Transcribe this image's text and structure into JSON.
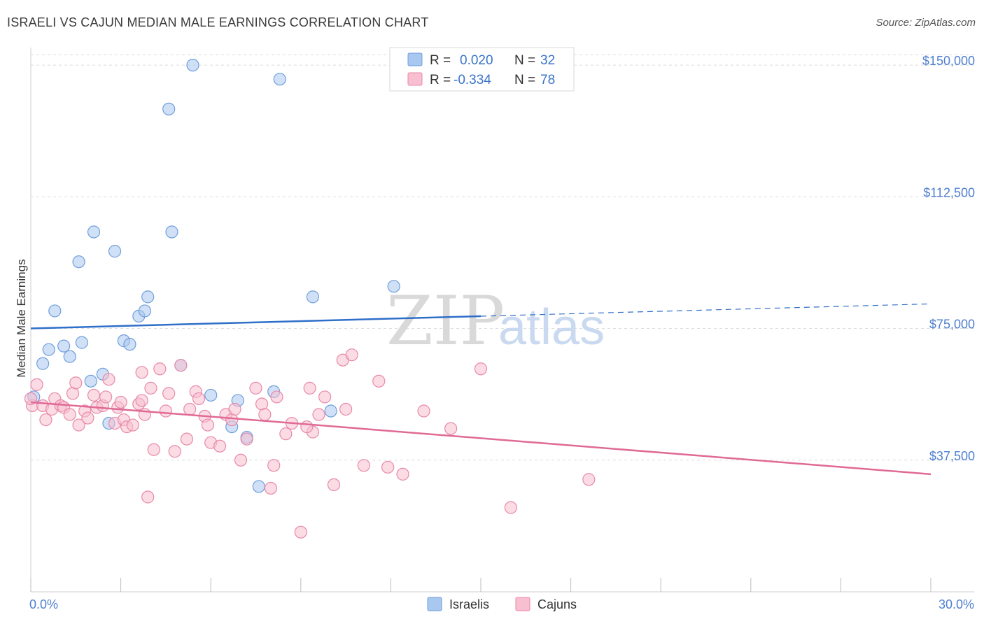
{
  "title": "ISRAELI VS CAJUN MEDIAN MALE EARNINGS CORRELATION CHART",
  "source": "Source: ZipAtlas.com",
  "watermark": {
    "zip": "ZIP",
    "atlas": "atlas"
  },
  "chart_data": {
    "type": "scatter",
    "title": "ISRAELI VS CAJUN MEDIAN MALE EARNINGS CORRELATION CHART",
    "ylabel": "Median Male Earnings",
    "xlim": [
      0,
      30
    ],
    "ylim": [
      0,
      155000
    ],
    "x_tick_labels": [
      "0.0%",
      "30.0%"
    ],
    "y_ticks": [
      37500,
      75000,
      112500,
      150000
    ],
    "y_tick_labels": [
      "$37,500",
      "$75,000",
      "$112,500",
      "$150,000"
    ],
    "grid": "horizontal dashed",
    "legend": {
      "placement": "top-center",
      "entries": [
        {
          "r_label": "R =",
          "r_value": "0.020",
          "n_label": "N =",
          "n_value": "32",
          "color": "#a9c8f0",
          "stroke": "#6f9edb"
        },
        {
          "r_label": "R =",
          "r_value": "-0.334",
          "n_label": "N =",
          "n_value": "78",
          "color": "#f8bfd0",
          "stroke": "#e889a8"
        }
      ]
    },
    "series": [
      {
        "name": "Israelis",
        "color": "#a9c8f0",
        "stroke": "#6f9edb",
        "line_color": "#2f6fc9",
        "trend": {
          "x": [
            0,
            15
          ],
          "y": [
            75000,
            78500
          ],
          "dashed_extension": {
            "x": [
              15,
              30
            ],
            "y": [
              78500,
              82000
            ]
          }
        },
        "points": [
          [
            0.1,
            55500
          ],
          [
            0.4,
            65000
          ],
          [
            0.6,
            69000
          ],
          [
            0.8,
            80000
          ],
          [
            1.1,
            70000
          ],
          [
            1.3,
            67000
          ],
          [
            1.6,
            94000
          ],
          [
            1.7,
            71000
          ],
          [
            2.0,
            60000
          ],
          [
            2.1,
            102500
          ],
          [
            2.4,
            62000
          ],
          [
            2.6,
            48000
          ],
          [
            2.8,
            97000
          ],
          [
            3.1,
            71500
          ],
          [
            3.3,
            70500
          ],
          [
            3.6,
            78500
          ],
          [
            3.8,
            80000
          ],
          [
            3.9,
            84000
          ],
          [
            4.6,
            137500
          ],
          [
            4.7,
            102500
          ],
          [
            5.0,
            64500
          ],
          [
            5.4,
            150000
          ],
          [
            6.0,
            56000
          ],
          [
            6.7,
            47000
          ],
          [
            6.9,
            54500
          ],
          [
            7.2,
            44000
          ],
          [
            7.6,
            30000
          ],
          [
            8.1,
            57000
          ],
          [
            8.3,
            146000
          ],
          [
            9.4,
            84000
          ],
          [
            10.0,
            51500
          ],
          [
            12.1,
            87000
          ]
        ]
      },
      {
        "name": "Cajuns",
        "color": "#f8bfd0",
        "stroke": "#e889a8",
        "line_color": "#e06a95",
        "trend": {
          "x": [
            0,
            30
          ],
          "y": [
            54000,
            33500
          ]
        },
        "points": [
          [
            0.05,
            53000
          ],
          [
            0.2,
            59000
          ],
          [
            0.4,
            53000
          ],
          [
            0.5,
            49000
          ],
          [
            0.7,
            52000
          ],
          [
            0.8,
            55000
          ],
          [
            1.0,
            53000
          ],
          [
            1.1,
            52500
          ],
          [
            1.3,
            50500
          ],
          [
            1.4,
            56500
          ],
          [
            1.5,
            59500
          ],
          [
            1.6,
            47500
          ],
          [
            1.8,
            51500
          ],
          [
            1.9,
            49500
          ],
          [
            2.1,
            56000
          ],
          [
            2.2,
            52500
          ],
          [
            2.4,
            53000
          ],
          [
            2.5,
            55500
          ],
          [
            2.6,
            60500
          ],
          [
            2.8,
            48000
          ],
          [
            2.9,
            52500
          ],
          [
            3.0,
            54000
          ],
          [
            3.1,
            49000
          ],
          [
            3.2,
            47000
          ],
          [
            3.4,
            47500
          ],
          [
            3.6,
            53500
          ],
          [
            3.7,
            54500
          ],
          [
            3.7,
            62500
          ],
          [
            3.8,
            50500
          ],
          [
            3.9,
            27000
          ],
          [
            4.0,
            58000
          ],
          [
            4.1,
            40500
          ],
          [
            4.3,
            63500
          ],
          [
            4.5,
            51500
          ],
          [
            4.6,
            56500
          ],
          [
            4.8,
            40000
          ],
          [
            5.0,
            64500
          ],
          [
            5.2,
            43500
          ],
          [
            5.3,
            52000
          ],
          [
            5.5,
            57000
          ],
          [
            5.6,
            55000
          ],
          [
            5.8,
            50000
          ],
          [
            5.9,
            47500
          ],
          [
            6.0,
            42500
          ],
          [
            6.3,
            41500
          ],
          [
            6.5,
            50500
          ],
          [
            6.7,
            49000
          ],
          [
            6.8,
            52000
          ],
          [
            7.0,
            37500
          ],
          [
            7.2,
            43500
          ],
          [
            7.5,
            58000
          ],
          [
            7.7,
            53500
          ],
          [
            7.8,
            50500
          ],
          [
            8.0,
            29500
          ],
          [
            8.1,
            36000
          ],
          [
            8.2,
            55500
          ],
          [
            8.5,
            45000
          ],
          [
            8.7,
            48000
          ],
          [
            9.0,
            17000
          ],
          [
            9.3,
            58000
          ],
          [
            9.4,
            45500
          ],
          [
            9.6,
            50500
          ],
          [
            9.8,
            55500
          ],
          [
            10.1,
            30500
          ],
          [
            10.5,
            52000
          ],
          [
            10.4,
            66000
          ],
          [
            10.7,
            67500
          ],
          [
            11.1,
            36000
          ],
          [
            11.6,
            60000
          ],
          [
            11.9,
            35500
          ],
          [
            12.4,
            33500
          ],
          [
            13.1,
            51500
          ],
          [
            14.0,
            46500
          ],
          [
            15.0,
            63500
          ],
          [
            16.0,
            24000
          ],
          [
            18.6,
            32000
          ],
          [
            0.0,
            55000
          ],
          [
            9.2,
            47000
          ]
        ]
      }
    ]
  }
}
